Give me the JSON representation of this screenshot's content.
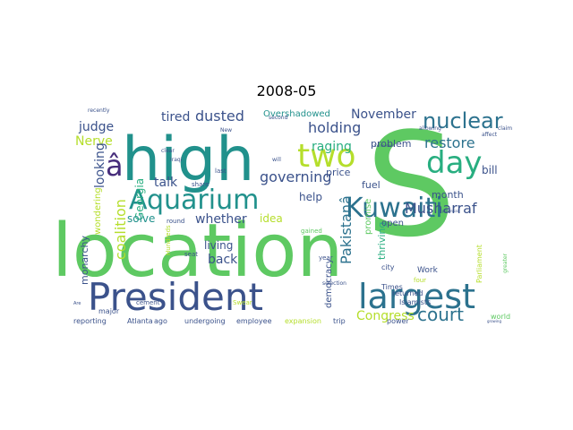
{
  "title": "2008-05",
  "words": [
    {
      "text": "location",
      "color": "#5ec962"
    },
    {
      "text": "S",
      "color": "#5ec962"
    },
    {
      "text": "high",
      "color": "#21918c"
    },
    {
      "text": "President",
      "color": "#3b528b"
    },
    {
      "text": "largest",
      "color": "#2c728e"
    },
    {
      "text": "Aquarium",
      "color": "#21918c"
    },
    {
      "text": "two",
      "color": "#b5de2b"
    },
    {
      "text": "day",
      "color": "#28ae80"
    },
    {
      "text": "Kuwaiti",
      "color": "#2c728e"
    },
    {
      "text": "nuclear",
      "color": "#2c728e"
    },
    {
      "text": "â",
      "color": "#472d7b"
    },
    {
      "text": "Musharraf",
      "color": "#3b528b"
    },
    {
      "text": "court",
      "color": "#2c728e"
    },
    {
      "text": "Pakistanâ",
      "color": "#2c728e"
    },
    {
      "text": "restore",
      "color": "#2c728e"
    },
    {
      "text": "dusted",
      "color": "#3b528b"
    },
    {
      "text": "holding",
      "color": "#3b528b"
    },
    {
      "text": "governing",
      "color": "#3b528b"
    },
    {
      "text": "whether",
      "color": "#3b528b"
    },
    {
      "text": "coalition",
      "color": "#b5de2b"
    },
    {
      "text": "Georgia",
      "color": "#28ae80"
    },
    {
      "text": "raging",
      "color": "#28ae80"
    },
    {
      "text": "judge",
      "color": "#3b528b"
    },
    {
      "text": "Nerve",
      "color": "#b5de2b"
    },
    {
      "text": "November",
      "color": "#3b528b"
    },
    {
      "text": "Congress",
      "color": "#b5de2b"
    },
    {
      "text": "talk",
      "color": "#3b528b"
    },
    {
      "text": "tired",
      "color": "#3b528b"
    },
    {
      "text": "looking",
      "color": "#3b528b"
    },
    {
      "text": "solve",
      "color": "#21918c"
    },
    {
      "text": "help",
      "color": "#3b528b"
    },
    {
      "text": "idea",
      "color": "#b5de2b"
    },
    {
      "text": "back",
      "color": "#3b528b"
    },
    {
      "text": "living",
      "color": "#3b528b"
    },
    {
      "text": "monarchy",
      "color": "#3b528b"
    },
    {
      "text": "democracy",
      "color": "#3b528b"
    },
    {
      "text": "thriving",
      "color": "#28ae80"
    },
    {
      "text": "bill",
      "color": "#3b528b"
    },
    {
      "text": "fuel",
      "color": "#3b528b"
    },
    {
      "text": "price",
      "color": "#3b528b"
    },
    {
      "text": "problem",
      "color": "#3b528b"
    },
    {
      "text": "month",
      "color": "#3b528b"
    },
    {
      "text": "promise",
      "color": "#5ec962"
    },
    {
      "text": "open",
      "color": "#3b528b"
    },
    {
      "text": "wondering",
      "color": "#b5de2b"
    },
    {
      "text": "Overshadowed",
      "color": "#21918c"
    },
    {
      "text": "Islamists",
      "color": "#3b528b"
    },
    {
      "text": "returned",
      "color": "#3b528b"
    },
    {
      "text": "Work",
      "color": "#3b528b"
    },
    {
      "text": "city",
      "color": "#3b528b"
    },
    {
      "text": "Times",
      "color": "#3b528b"
    },
    {
      "text": "Parliament",
      "color": "#b5de2b"
    },
    {
      "text": "reporting",
      "color": "#3b528b"
    },
    {
      "text": "Atlanta",
      "color": "#3b528b"
    },
    {
      "text": "undergoing",
      "color": "#3b528b"
    },
    {
      "text": "employee",
      "color": "#3b528b"
    },
    {
      "text": "expansion",
      "color": "#b5de2b"
    },
    {
      "text": "trip",
      "color": "#3b528b"
    },
    {
      "text": "power",
      "color": "#3b528b"
    },
    {
      "text": "world",
      "color": "#5ec962"
    },
    {
      "text": "ago",
      "color": "#3b528b"
    },
    {
      "text": "major",
      "color": "#3b528b"
    },
    {
      "text": "Iraqi",
      "color": "#3b528b"
    },
    {
      "text": "cement",
      "color": "#3b528b"
    },
    {
      "text": "Swear",
      "color": "#b5de2b"
    },
    {
      "text": "Hundreds",
      "color": "#b5de2b"
    },
    {
      "text": "round",
      "color": "#3b528b"
    },
    {
      "text": "seat",
      "color": "#3b528b"
    },
    {
      "text": "share",
      "color": "#3b528b"
    },
    {
      "text": "last",
      "color": "#3b528b"
    },
    {
      "text": "gained",
      "color": "#5ec962"
    },
    {
      "text": "year",
      "color": "#3b528b"
    },
    {
      "text": "selection",
      "color": "#3b528b"
    },
    {
      "text": "four",
      "color": "#b5de2b"
    },
    {
      "text": "greater",
      "color": "#5ec962"
    },
    {
      "text": "recently",
      "color": "#3b528b"
    },
    {
      "text": "New",
      "color": "#3b528b"
    },
    {
      "text": "clear",
      "color": "#3b528b"
    },
    {
      "text": "second",
      "color": "#3b528b"
    },
    {
      "text": "will",
      "color": "#3b528b"
    },
    {
      "text": "allowing",
      "color": "#3b528b"
    },
    {
      "text": "affect",
      "color": "#3b528b"
    },
    {
      "text": "claim",
      "color": "#3b528b"
    },
    {
      "text": "Conference",
      "color": "#3b528b"
    },
    {
      "text": "potential",
      "color": "#3b528b"
    },
    {
      "text": "Are",
      "color": "#3b528b"
    },
    {
      "text": "growing",
      "color": "#3b528b"
    }
  ]
}
